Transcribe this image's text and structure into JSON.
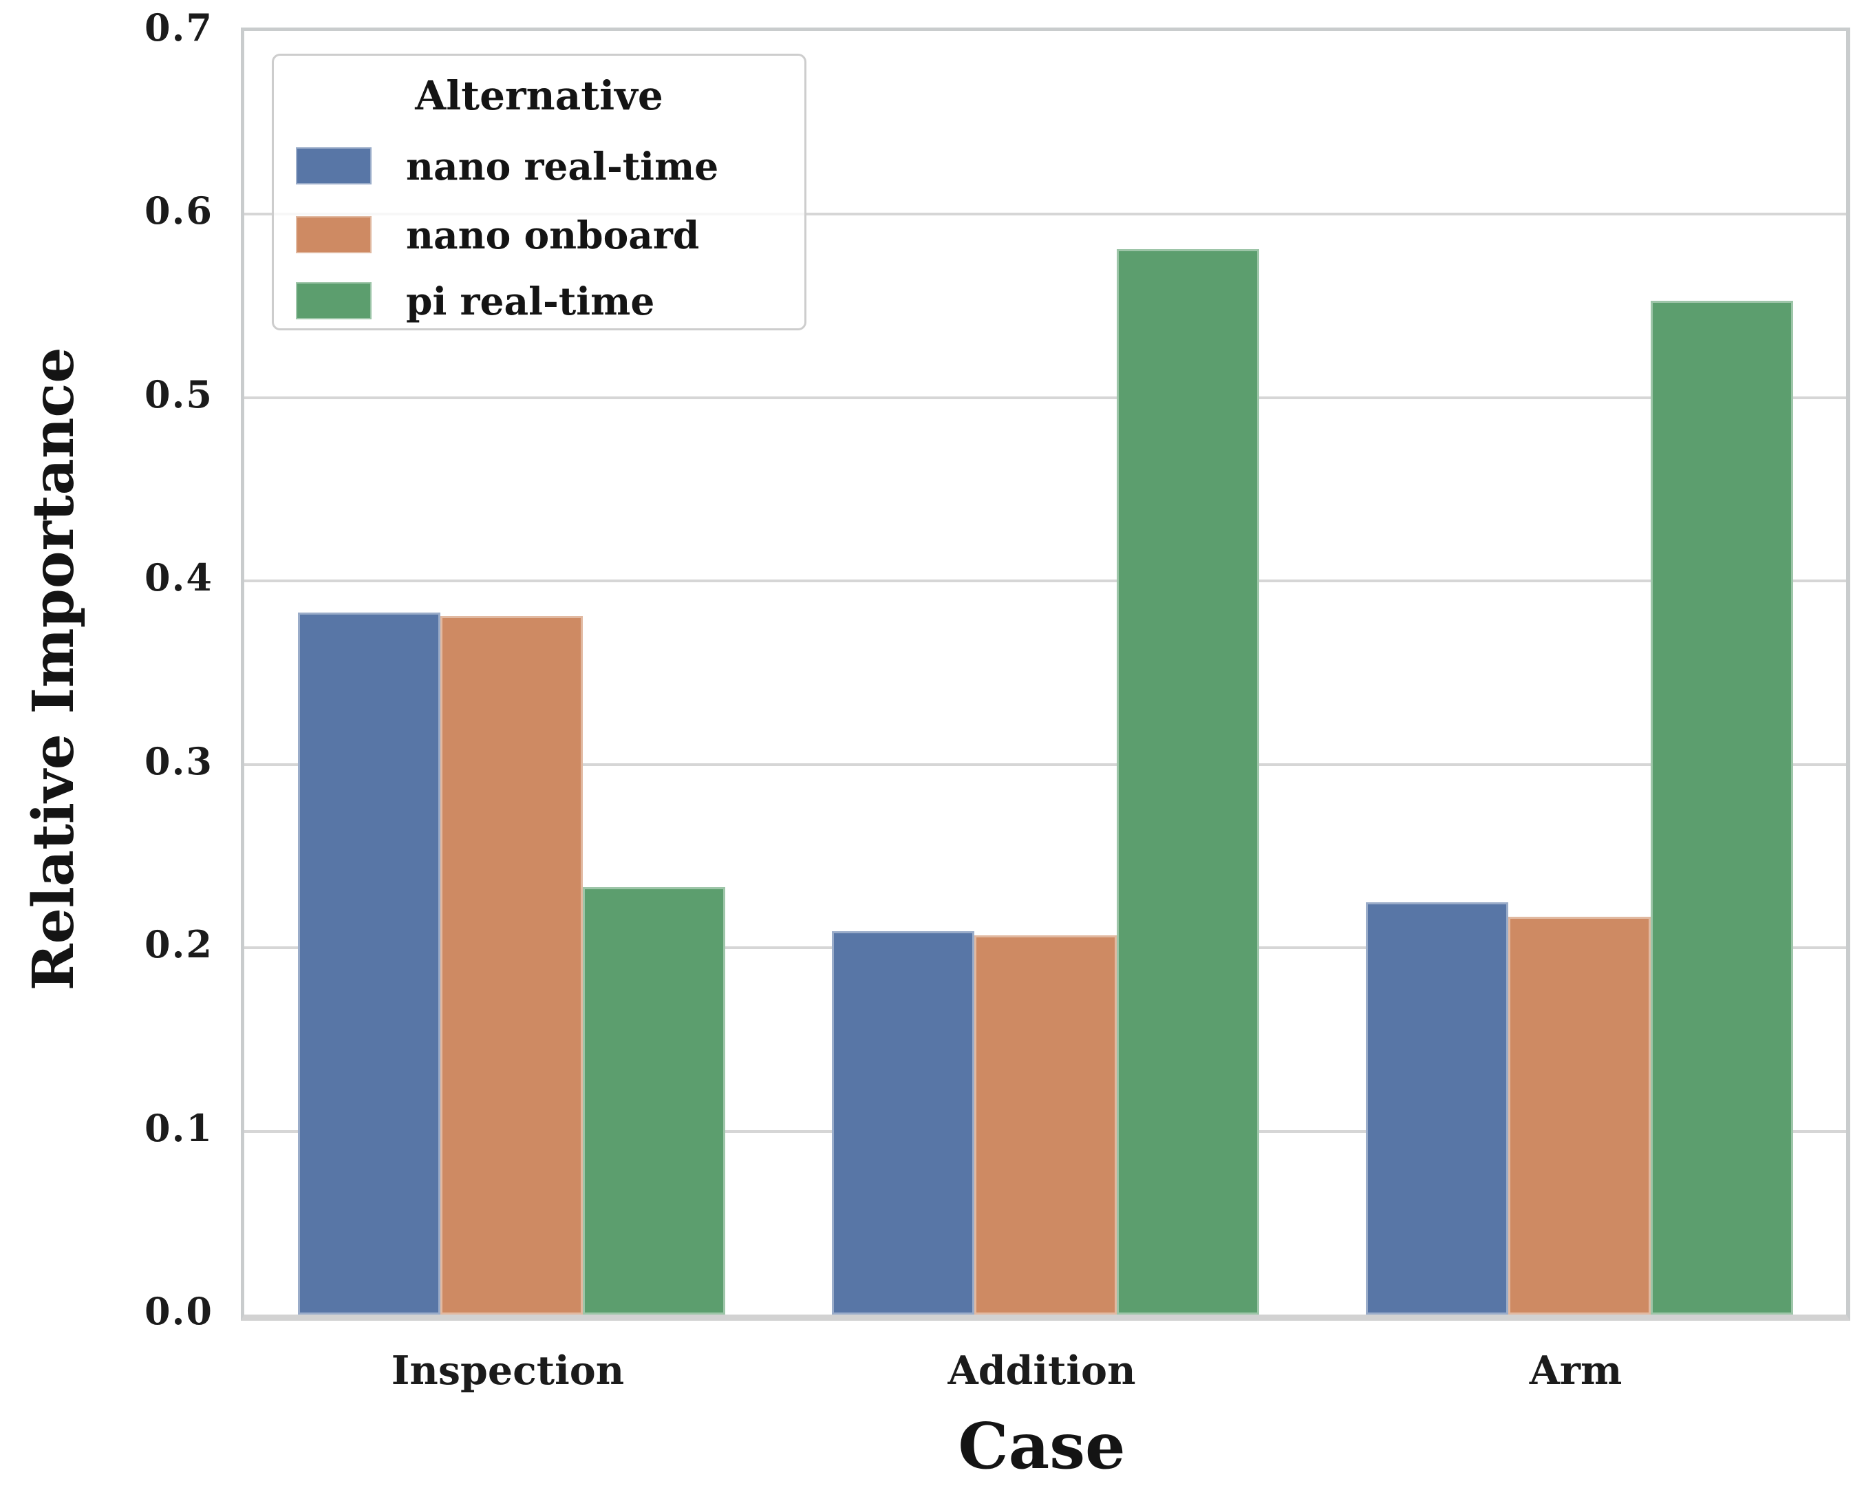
{
  "chart_data": {
    "type": "bar",
    "title": "",
    "xlabel": "Case",
    "ylabel": "Relative Importance",
    "categories": [
      "Inspection",
      "Addition",
      "Arm"
    ],
    "series": [
      {
        "name": "nano real-time",
        "color": "#5876A6",
        "values": [
          0.383,
          0.209,
          0.225
        ]
      },
      {
        "name": "nano onboard",
        "color": "#CE8A63",
        "values": [
          0.381,
          0.207,
          0.217
        ]
      },
      {
        "name": "pi real-time",
        "color": "#5C9E6E",
        "values": [
          0.233,
          0.581,
          0.553
        ]
      }
    ],
    "ylim": [
      0.0,
      0.7
    ],
    "ytick_labels": [
      "0.0",
      "0.1",
      "0.2",
      "0.3",
      "0.4",
      "0.5",
      "0.6",
      "0.7"
    ],
    "grid": "horizontal",
    "legend": {
      "title": "Alternative",
      "position": "upper-left"
    },
    "style": {
      "grid_color": "#d6d6d6",
      "spine_color": "#c9cccd",
      "text_color": "#1b1b1b"
    }
  }
}
